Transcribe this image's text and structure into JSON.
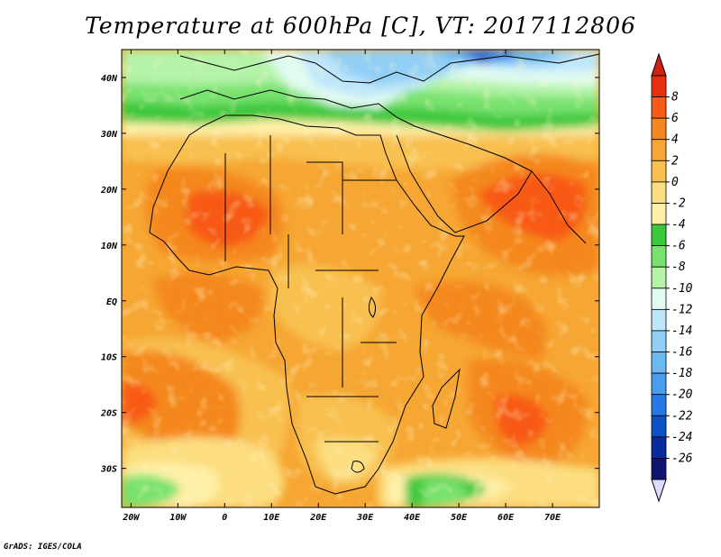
{
  "title": "Temperature at 600hPa [C], VT: 2017112806",
  "credit": "GrADS: IGES/COLA",
  "map": {
    "region": "Africa and surrounding seas",
    "lon_range": [
      -22,
      80
    ],
    "lat_range": [
      -37,
      45
    ],
    "y_ticks": [
      {
        "lat": 40,
        "label": "40N"
      },
      {
        "lat": 30,
        "label": "30N"
      },
      {
        "lat": 20,
        "label": "20N"
      },
      {
        "lat": 10,
        "label": "10N"
      },
      {
        "lat": 0,
        "label": "EQ"
      },
      {
        "lat": -10,
        "label": "10S"
      },
      {
        "lat": -20,
        "label": "20S"
      },
      {
        "lat": -30,
        "label": "30S"
      }
    ],
    "x_ticks": [
      {
        "lon": -20,
        "label": "20W"
      },
      {
        "lon": -10,
        "label": "10W"
      },
      {
        "lon": 0,
        "label": "0"
      },
      {
        "lon": 10,
        "label": "10E"
      },
      {
        "lon": 20,
        "label": "20E"
      },
      {
        "lon": 30,
        "label": "30E"
      },
      {
        "lon": 40,
        "label": "40E"
      },
      {
        "lon": 50,
        "label": "50E"
      },
      {
        "lon": 60,
        "label": "60E"
      },
      {
        "lon": 70,
        "label": "70E"
      }
    ]
  },
  "colorbar": {
    "labels": [
      "8",
      "6",
      "4",
      "2",
      "0",
      "-2",
      "-4",
      "-6",
      "-8",
      "-10",
      "-12",
      "-14",
      "-16",
      "-18",
      "-20",
      "-22",
      "-24",
      "-26"
    ],
    "colors": [
      "#e83010",
      "#f85a18",
      "#f4881e",
      "#f6a632",
      "#f8c050",
      "#fcde80",
      "#fff0a8",
      "#3cc83c",
      "#78e26e",
      "#b4f3a8",
      "#e2fbf2",
      "#bde6fa",
      "#92cff6",
      "#6cb8f2",
      "#489def",
      "#2678e6",
      "#0e50c6",
      "#0a2aa0",
      "#101470"
    ],
    "top_color": "#d22010",
    "bottom_color": "#dcdcfa"
  }
}
